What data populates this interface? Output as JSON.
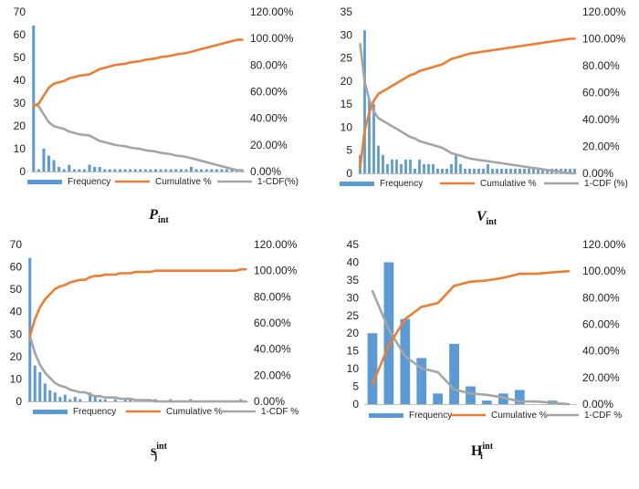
{
  "colors": {
    "frequency": "#5b9bd5",
    "cumulative": "#ed7d31",
    "complement": "#a5a5a5",
    "axis": "#bfbfbf",
    "text": "#222222"
  },
  "chart_data": [
    {
      "type": "bar",
      "caption": {
        "main": "P",
        "sub": "int"
      },
      "title": "",
      "ylim_left": [
        0,
        70
      ],
      "left_ticks": [
        "0",
        "10",
        "20",
        "30",
        "40",
        "50",
        "60",
        "70"
      ],
      "ylim_right": [
        0,
        120
      ],
      "right_ticks": [
        "0.00%",
        "20.00%",
        "40.00%",
        "60.00%",
        "80.00%",
        "100.00%",
        "120.00%"
      ],
      "legend": [
        "Frequency",
        "Cumulative %",
        "1-CDF(%)"
      ],
      "series": [
        {
          "name": "Frequency",
          "axis": "left",
          "values": [
            64,
            1,
            10,
            7,
            5,
            2,
            1,
            3,
            1,
            1,
            1,
            3,
            2,
            2,
            1,
            1,
            1,
            1,
            1,
            1,
            1,
            1,
            1,
            1,
            1,
            1,
            1,
            1,
            1,
            1,
            1,
            2,
            1,
            1,
            1,
            1,
            1,
            1,
            1,
            1,
            1,
            1
          ]
        },
        {
          "name": "Cumulative %",
          "axis": "right",
          "values": [
            49,
            51,
            57,
            63,
            66,
            67,
            68,
            70,
            71,
            72,
            72.5,
            73,
            75,
            77,
            78,
            79,
            80,
            80.5,
            81,
            82,
            82.5,
            83,
            84,
            84.5,
            85,
            86,
            86.5,
            87,
            88,
            88.5,
            89,
            90,
            91,
            92,
            93,
            94,
            95,
            96,
            97,
            98,
            99,
            99
          ]
        },
        {
          "name": "1-CDF(%)",
          "axis": "right",
          "values": [
            51,
            49,
            43,
            37,
            34,
            33,
            32,
            30,
            29,
            28,
            27.5,
            27,
            25,
            23,
            22,
            21,
            20,
            19.5,
            19,
            18,
            17.5,
            17,
            16,
            15.5,
            15,
            14,
            13.5,
            13,
            12,
            11.5,
            11,
            10,
            9,
            8,
            7,
            6,
            5,
            4,
            3,
            2,
            1,
            1
          ]
        }
      ]
    },
    {
      "type": "bar",
      "caption": {
        "main": "V",
        "sub": "int"
      },
      "title": "",
      "ylim_left": [
        0,
        35
      ],
      "left_ticks": [
        "0",
        "5",
        "10",
        "15",
        "20",
        "25",
        "30",
        "35"
      ],
      "ylim_right": [
        0,
        120
      ],
      "right_ticks": [
        "0.00%",
        "20.00%",
        "40.00%",
        "60.00%",
        "80.00%",
        "100.00%",
        "120.00%"
      ],
      "legend": [
        "Frequency",
        "Cumulative %",
        "1-CDF (%)"
      ],
      "series": [
        {
          "name": "Frequency",
          "axis": "left",
          "values": [
            4,
            31,
            16,
            15,
            6,
            4,
            2,
            3,
            3,
            2,
            3,
            3,
            1,
            3,
            2,
            2,
            2,
            1,
            1,
            1,
            2,
            4,
            2,
            1,
            1,
            1,
            1,
            1,
            2,
            1,
            1,
            1,
            1,
            1,
            1,
            1,
            1,
            1,
            1,
            1,
            1,
            1,
            1,
            1,
            1,
            1,
            1,
            1
          ]
        },
        {
          "name": "Cumulative %",
          "axis": "right",
          "values": [
            4,
            32,
            45,
            54,
            59,
            61,
            63,
            65,
            67,
            69,
            71,
            73,
            74,
            76,
            77,
            78,
            79,
            80,
            81,
            83,
            85,
            86,
            87,
            88,
            89,
            89.5,
            90,
            90.5,
            91,
            91.5,
            92,
            92.5,
            93,
            93.5,
            94,
            94.5,
            95,
            95.5,
            96,
            96.5,
            97,
            97.5,
            98,
            98.5,
            99,
            99.5,
            100,
            100
          ]
        },
        {
          "name": "1-CDF (%)",
          "axis": "right",
          "values": [
            96,
            68,
            55,
            46,
            41,
            39,
            37,
            35,
            33,
            31,
            29,
            27,
            26,
            24,
            23,
            22,
            21,
            20,
            19,
            17,
            15,
            14,
            13,
            12,
            11,
            10.5,
            10,
            9.5,
            9,
            8.5,
            8,
            7.5,
            7,
            6.5,
            6,
            5.5,
            5,
            4.5,
            4,
            3.5,
            3,
            2.5,
            2,
            1.5,
            1,
            0.5,
            0,
            0
          ]
        }
      ]
    },
    {
      "type": "bar",
      "caption": {
        "main": "s",
        "sub": "j",
        "sup": "int"
      },
      "title": "",
      "ylim_left": [
        0,
        70
      ],
      "left_ticks": [
        "0",
        "10",
        "20",
        "30",
        "40",
        "50",
        "60",
        "70"
      ],
      "ylim_right": [
        0,
        120
      ],
      "right_ticks": [
        "0.00%",
        "20.00%",
        "40.00%",
        "60.00%",
        "80.00%",
        "100.00%",
        "120.00%"
      ],
      "legend": [
        "Frequency",
        "Cumulative %",
        "1-CDF %"
      ],
      "series": [
        {
          "name": "Frequency",
          "axis": "left",
          "values": [
            64,
            16,
            13,
            8,
            5,
            4,
            2,
            3,
            1,
            2,
            1,
            0,
            4,
            2,
            1,
            1,
            0,
            1,
            0,
            1,
            1,
            0,
            0,
            1,
            1,
            1,
            0,
            0,
            1,
            0,
            0,
            0,
            1,
            0,
            0,
            0,
            0,
            0,
            0,
            0,
            0,
            0,
            1,
            0
          ]
        },
        {
          "name": "Cumulative %",
          "axis": "right",
          "values": [
            50,
            63,
            72,
            78,
            82,
            86,
            88,
            89,
            91,
            92,
            93,
            93,
            95,
            96,
            96,
            97,
            97,
            97,
            98,
            98,
            98,
            99,
            99,
            99,
            99,
            100,
            100,
            100,
            100,
            100,
            100,
            100,
            100,
            100,
            100,
            100,
            100,
            100,
            100,
            100,
            100,
            100,
            101,
            101
          ]
        },
        {
          "name": "1-CDF %",
          "axis": "right",
          "values": [
            50,
            37,
            28,
            22,
            18,
            14,
            12,
            11,
            9,
            8,
            7,
            7,
            5,
            4,
            4,
            3,
            3,
            3,
            2,
            2,
            2,
            1,
            1,
            1,
            1,
            0,
            0,
            0,
            0,
            0,
            0,
            0,
            0,
            0,
            0,
            0,
            0,
            0,
            0,
            0,
            0,
            0,
            0,
            0
          ]
        }
      ]
    },
    {
      "type": "bar",
      "caption": {
        "main": "H",
        "sub": "i",
        "sup": "int"
      },
      "title": "",
      "ylim_left": [
        0,
        45
      ],
      "left_ticks": [
        "0",
        "5",
        "10",
        "15",
        "20",
        "25",
        "30",
        "35",
        "40",
        "45"
      ],
      "ylim_right": [
        0,
        120
      ],
      "right_ticks": [
        "0.00%",
        "20.00%",
        "40.00%",
        "60.00%",
        "80.00%",
        "100.00%",
        "120.00%"
      ],
      "legend": [
        "Frequency",
        "Cumulative %",
        "1-CDF %"
      ],
      "series": [
        {
          "name": "Frequency",
          "axis": "left",
          "values": [
            20,
            40,
            24,
            13,
            3,
            17,
            5,
            1,
            3,
            4,
            0,
            1,
            0
          ]
        },
        {
          "name": "Cumulative %",
          "axis": "right",
          "values": [
            15,
            44,
            64,
            73,
            76,
            89,
            92,
            93,
            95,
            98,
            98,
            99,
            100
          ]
        },
        {
          "name": "1-CDF %",
          "axis": "right",
          "values": [
            85,
            56,
            36,
            27,
            24,
            11,
            8,
            7,
            5,
            2,
            2,
            1,
            0
          ]
        }
      ]
    }
  ]
}
